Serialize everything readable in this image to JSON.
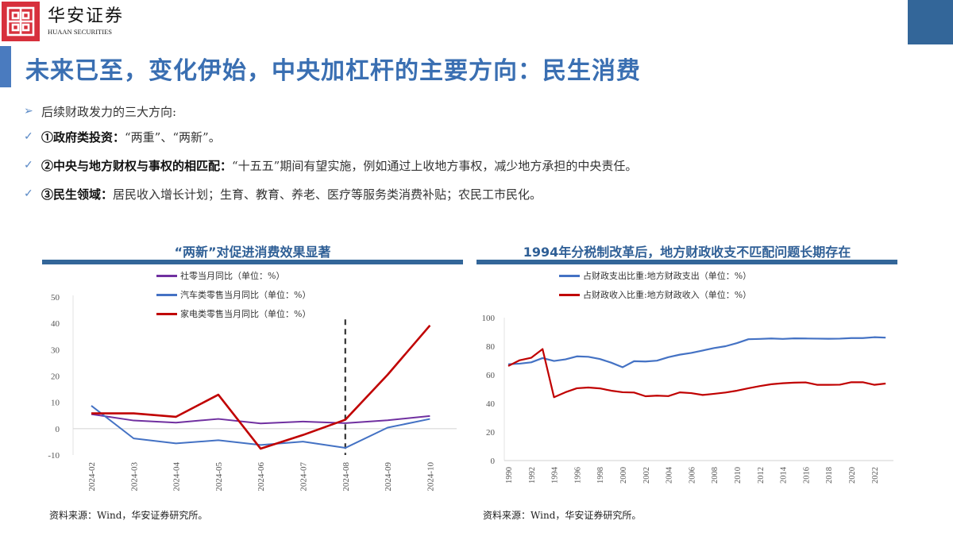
{
  "header": {
    "logo_cn": "华安证券",
    "logo_en": "HUAAN SECURITIES",
    "brand_color": "#d7303c",
    "accent_color": "#336699"
  },
  "page": {
    "title": "未来已至，变化伊始，中央加杠杆的主要方向：民生消费"
  },
  "bullets": {
    "intro": "后续财政发力的三大方向:",
    "items": [
      {
        "bold": "①政府类投资：",
        "text": "“两重”、“两新”。"
      },
      {
        "bold": "②中央与地方财权与事权的相匹配：",
        "text": "“十五五”期间有望实施，例如通过上收地方事权，减少地方承担的中央责任。"
      },
      {
        "bold": "③民生领域：",
        "text": "居民收入增长计划；生育、教育、养老、医疗等服务类消费补贴；农民工市民化。"
      }
    ]
  },
  "chart_data": [
    {
      "type": "line",
      "title": "“两新”对促进消费效果显著",
      "xlabel": "",
      "ylabel": "",
      "ylim": [
        -10,
        50
      ],
      "yticks": [
        -10,
        0,
        10,
        20,
        30,
        40,
        50
      ],
      "categories": [
        "2024-02",
        "2024-03",
        "2024-04",
        "2024-05",
        "2024-06",
        "2024-07",
        "2024-08",
        "2024-09",
        "2024-10"
      ],
      "series": [
        {
          "name": "社零当月同比（单位：%）",
          "color": "#7030a0",
          "values": [
            5.5,
            3.1,
            2.3,
            3.7,
            2.0,
            2.7,
            2.1,
            3.2,
            4.8
          ]
        },
        {
          "name": "汽车类零售当月同比（单位：%）",
          "color": "#4472c4",
          "values": [
            8.7,
            -3.7,
            -5.6,
            -4.4,
            -6.2,
            -4.9,
            -7.3,
            0.4,
            3.7
          ]
        },
        {
          "name": "家电类零售当月同比（单位：%）",
          "color": "#c00000",
          "values": [
            5.8,
            5.8,
            4.5,
            12.9,
            -7.6,
            -2.4,
            3.4,
            20.5,
            39.2
          ]
        }
      ],
      "annotations": [
        {
          "type": "vline-dashed",
          "x": "2024-08"
        }
      ],
      "legend_position": "top",
      "grid": false,
      "source": "资料来源：Wind，华安证券研究所。"
    },
    {
      "type": "line",
      "title": "1994年分税制改革后，地方财政收支不匹配问题长期存在",
      "xlabel": "",
      "ylabel": "",
      "ylim": [
        0,
        100
      ],
      "yticks": [
        0,
        20,
        40,
        60,
        80,
        100
      ],
      "x": [
        1990,
        1991,
        1992,
        1993,
        1994,
        1995,
        1996,
        1997,
        1998,
        1999,
        2000,
        2001,
        2002,
        2003,
        2004,
        2005,
        2006,
        2007,
        2008,
        2009,
        2010,
        2011,
        2012,
        2013,
        2014,
        2015,
        2016,
        2017,
        2018,
        2019,
        2020,
        2021,
        2022,
        2023
      ],
      "xticks": [
        "1990",
        "1992",
        "1994",
        "1996",
        "1998",
        "2000",
        "2002",
        "2004",
        "2006",
        "2008",
        "2010",
        "2012",
        "2014",
        "2016",
        "2018",
        "2020",
        "2022"
      ],
      "series": [
        {
          "name": "占财政支出比重:地方财政支出（单位：%）",
          "color": "#4472c4",
          "values": [
            67.4,
            67.8,
            68.7,
            71.7,
            69.7,
            70.8,
            72.9,
            72.6,
            71.1,
            68.5,
            65.3,
            69.5,
            69.3,
            69.9,
            72.3,
            74.1,
            75.3,
            77.0,
            78.7,
            80.0,
            82.2,
            84.9,
            85.1,
            85.4,
            85.1,
            85.5,
            85.4,
            85.3,
            85.2,
            85.3,
            85.7,
            85.7,
            86.3,
            86.0
          ]
        },
        {
          "name": "占财政收入比重:地方财政收入（单位：%）",
          "color": "#c00000",
          "values": [
            66.2,
            70.2,
            71.9,
            78.0,
            44.3,
            47.8,
            50.6,
            51.1,
            50.5,
            48.9,
            47.8,
            47.6,
            45.0,
            45.4,
            45.1,
            47.7,
            47.2,
            45.9,
            46.7,
            47.6,
            48.9,
            50.6,
            52.1,
            53.4,
            54.1,
            54.5,
            54.7,
            53.0,
            53.0,
            53.1,
            54.8,
            54.8,
            53.0,
            53.9
          ]
        }
      ],
      "legend_position": "top",
      "grid": false,
      "source": "资料来源：Wind，华安证券研究所。"
    }
  ]
}
